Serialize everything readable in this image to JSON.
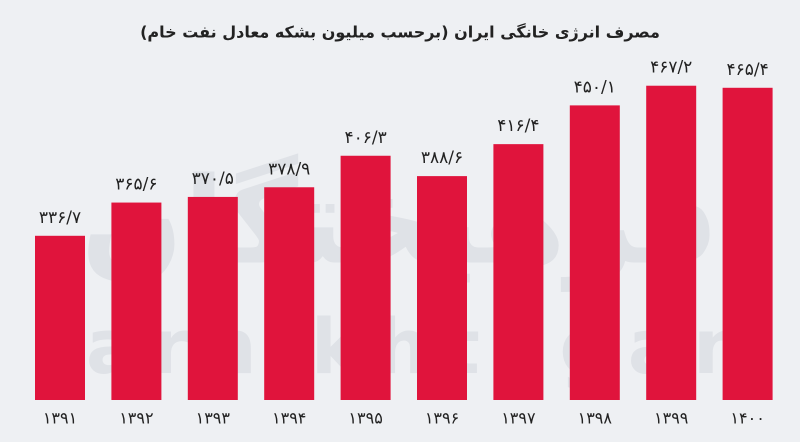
{
  "chart_data": {
    "type": "bar",
    "title": "مصرف انرژی خانگی ایران (برحسب میلیون بشکه معادل نفت خام)",
    "watermark": "farhikhtegan",
    "watermark_fa": "فرهیختگان",
    "categories": [
      "۱۳۹۱",
      "۱۳۹۲",
      "۱۳۹۳",
      "۱۳۹۴",
      "۱۳۹۵",
      "۱۳۹۶",
      "۱۳۹۷",
      "۱۳۹۸",
      "۱۳۹۹",
      "۱۴۰۰"
    ],
    "values": [
      336.7,
      365.6,
      370.5,
      378.9,
      406.3,
      388.6,
      416.4,
      450.1,
      467.2,
      465.4
    ],
    "value_labels": [
      "۳۳۶/۷",
      "۳۶۵/۶",
      "۳۷۰/۵",
      "۳۷۸/۹",
      "۴۰۶/۳",
      "۳۸۸/۶",
      "۴۱۶/۴",
      "۴۵۰/۱",
      "۴۶۷/۲",
      "۴۶۵/۴"
    ],
    "color": "#e0143c"
  }
}
